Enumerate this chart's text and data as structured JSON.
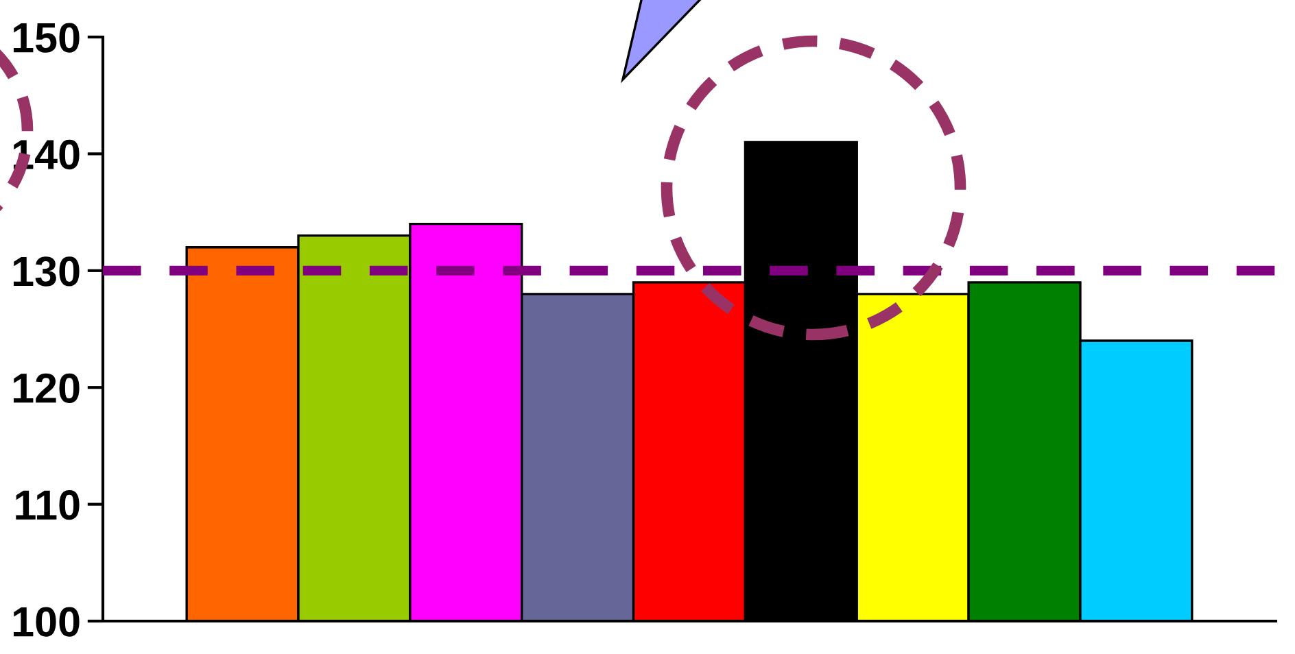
{
  "chart_data": {
    "type": "bar",
    "categories": [
      null,
      null,
      null,
      null,
      null,
      null,
      null,
      null,
      null
    ],
    "values": [
      132,
      133,
      134,
      128,
      129,
      141,
      128,
      129,
      124
    ],
    "colors": [
      "#ff6600",
      "#99cc00",
      "#ff00ff",
      "#666699",
      "#ff0000",
      "#000000",
      "#ffff00",
      "#008000",
      "#00ccff"
    ],
    "ylim": [
      100,
      150
    ],
    "yticks": [
      100,
      110,
      120,
      130,
      140,
      150
    ],
    "ref_lines": [
      {
        "axis": "y",
        "value": 130,
        "color": "#800080",
        "line_style": "dashed"
      }
    ],
    "grid": false,
    "legend": false
  }
}
